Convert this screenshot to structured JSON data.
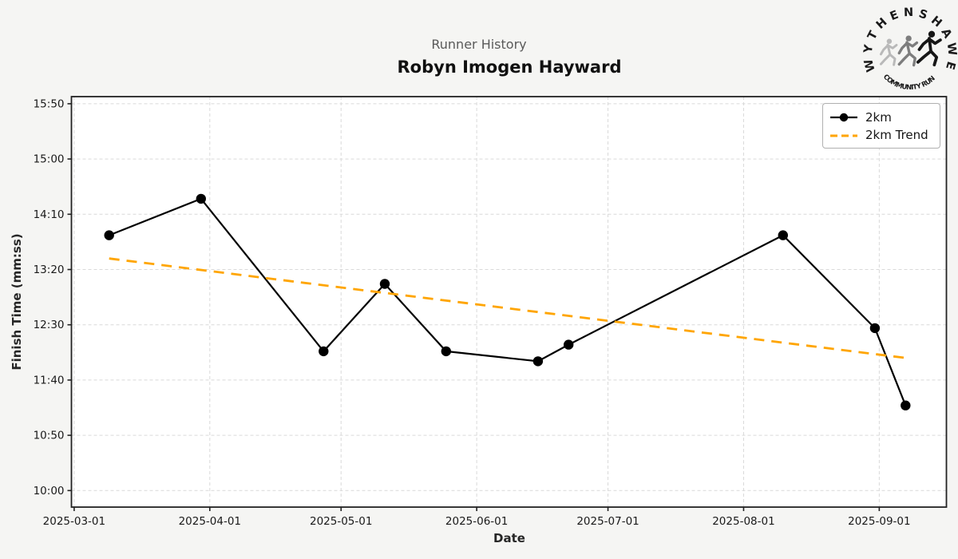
{
  "header": {
    "subtitle": "Runner History",
    "title": "Robyn Imogen Hayward"
  },
  "logo": {
    "top_text": "WYTHENSHAWE",
    "bottom_text": "COMMUNITY RUN"
  },
  "legend": {
    "items": [
      {
        "label": "2km",
        "color": "#000000",
        "style": "solid-with-marker"
      },
      {
        "label": "2km Trend",
        "color": "#FFA500",
        "style": "dashed"
      }
    ]
  },
  "chart_data": {
    "type": "line",
    "title": "Robyn Imogen Hayward",
    "subtitle": "Runner History",
    "xlabel": "Date",
    "ylabel": "Finish Time (mm:ss)",
    "grid": true,
    "legend_position": "top-right",
    "x_tick_labels": [
      "2025-03-01",
      "2025-04-01",
      "2025-05-01",
      "2025-06-01",
      "2025-07-01",
      "2025-08-01",
      "2025-09-01"
    ],
    "y_tick_labels": [
      "10:00",
      "10:50",
      "11:40",
      "12:30",
      "13:20",
      "14:10",
      "15:00",
      "15:50"
    ],
    "x_range": [
      "2025-02-28",
      "2025-09-16"
    ],
    "y_range_mmss": [
      "09:45",
      "15:56"
    ],
    "series": [
      {
        "name": "2km",
        "style": "solid-with-marker",
        "color": "#000000",
        "points": [
          {
            "date": "2025-03-09",
            "time": "13:51"
          },
          {
            "date": "2025-03-30",
            "time": "14:24"
          },
          {
            "date": "2025-04-27",
            "time": "12:06"
          },
          {
            "date": "2025-05-11",
            "time": "13:07"
          },
          {
            "date": "2025-05-25",
            "time": "12:06"
          },
          {
            "date": "2025-06-15",
            "time": "11:57"
          },
          {
            "date": "2025-06-22",
            "time": "12:12"
          },
          {
            "date": "2025-08-10",
            "time": "13:51"
          },
          {
            "date": "2025-08-31",
            "time": "12:27"
          },
          {
            "date": "2025-09-07",
            "time": "11:17"
          }
        ]
      },
      {
        "name": "2km Trend",
        "style": "dashed",
        "color": "#FFA500",
        "points": [
          {
            "date": "2025-03-09",
            "time": "13:30"
          },
          {
            "date": "2025-09-07",
            "time": "12:00"
          }
        ]
      }
    ]
  }
}
